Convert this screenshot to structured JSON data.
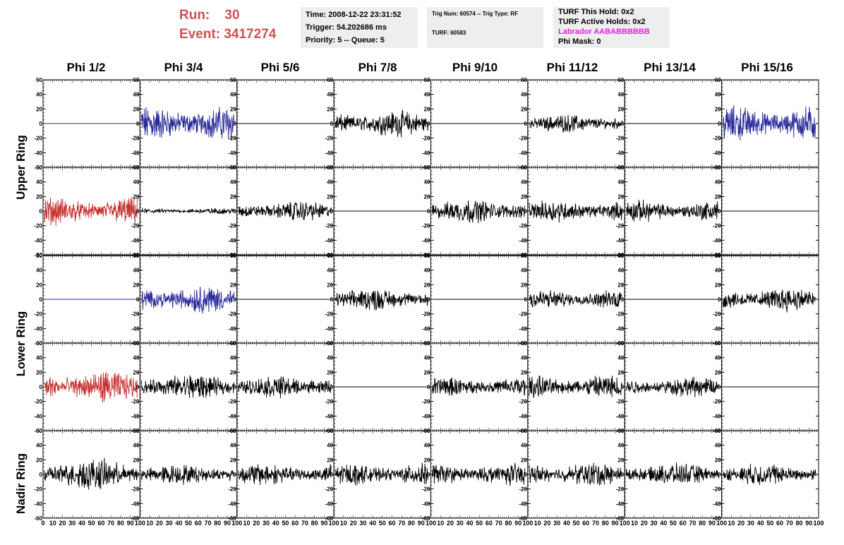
{
  "header": {
    "run_label": "Run:",
    "run_value": "30",
    "event_label": "Event:",
    "event_value": "3417274",
    "time": "Time: 2008-12-22 23:31:52",
    "trigger": "Trigger: 54.202686 ms",
    "priority": "Priority: 5 -- Queue: 5",
    "trig_num": "Trig Num: 60574 -- Trig Type: RF",
    "turf": "TURF: 60583",
    "turf_this_hold": "TURF This Hold: 0x2",
    "turf_active_holds": "TURF Active Holds: 0x2",
    "labrador": "Labrador AABABBBBBB",
    "phi_mask": "Phi Mask: 0"
  },
  "columns": [
    "Phi 1/2",
    "Phi 3/4",
    "Phi 5/6",
    "Phi 7/8",
    "Phi 9/10",
    "Phi 11/12",
    "Phi 13/14",
    "Phi 15/16"
  ],
  "rings": [
    "Upper Ring",
    "Lower Ring",
    "Nadir Ring"
  ],
  "colors": {
    "run_text": "#d05050",
    "labrador_text": "#e020e0",
    "info_bg": "#eeeeee",
    "blue_trace": "#2a2a9a",
    "red_trace": "#c83030",
    "black_trace": "#000000"
  },
  "chart_data": {
    "type": "line",
    "ylim": [
      -60,
      60
    ],
    "xlim": [
      0,
      100
    ],
    "y_ticks": [
      -60,
      -40,
      -20,
      0,
      20,
      40,
      60
    ],
    "x_tick_labels": [
      "0",
      "10",
      "20",
      "30",
      "40",
      "50",
      "60",
      "70",
      "80",
      "90",
      "100"
    ],
    "panels": [
      [
        {
          "color": "blue",
          "amp": 0
        },
        {
          "color": "blue",
          "amp": 18
        },
        {
          "color": "black",
          "amp": 0
        },
        {
          "color": "black",
          "amp": 13
        },
        {
          "color": "black",
          "amp": 0
        },
        {
          "color": "black",
          "amp": 9
        },
        {
          "color": "black",
          "amp": 0
        },
        {
          "color": "blue",
          "amp": 18
        }
      ],
      [
        {
          "color": "red",
          "amp": 14
        },
        {
          "color": "black",
          "amp": 3
        },
        {
          "color": "black",
          "amp": 10
        },
        {
          "color": "black",
          "amp": 0
        },
        {
          "color": "black",
          "amp": 12
        },
        {
          "color": "black",
          "amp": 11
        },
        {
          "color": "black",
          "amp": 11
        },
        {
          "color": "black",
          "amp": 0
        }
      ],
      [
        {
          "color": "blue",
          "amp": 0
        },
        {
          "color": "blue",
          "amp": 14
        },
        {
          "color": "black",
          "amp": 0
        },
        {
          "color": "black",
          "amp": 11
        },
        {
          "color": "black",
          "amp": 0
        },
        {
          "color": "black",
          "amp": 10
        },
        {
          "color": "black",
          "amp": 0
        },
        {
          "color": "black",
          "amp": 12
        }
      ],
      [
        {
          "color": "red",
          "amp": 16
        },
        {
          "color": "black",
          "amp": 13
        },
        {
          "color": "black",
          "amp": 11
        },
        {
          "color": "black",
          "amp": 0
        },
        {
          "color": "black",
          "amp": 10
        },
        {
          "color": "black",
          "amp": 12
        },
        {
          "color": "black",
          "amp": 10
        },
        {
          "color": "black",
          "amp": 0
        }
      ],
      [
        {
          "color": "black",
          "amp": 16
        },
        {
          "color": "black",
          "amp": 10
        },
        {
          "color": "black",
          "amp": 11
        },
        {
          "color": "black",
          "amp": 11
        },
        {
          "color": "black",
          "amp": 11
        },
        {
          "color": "black",
          "amp": 12
        },
        {
          "color": "black",
          "amp": 11
        },
        {
          "color": "black",
          "amp": 11
        }
      ]
    ]
  }
}
